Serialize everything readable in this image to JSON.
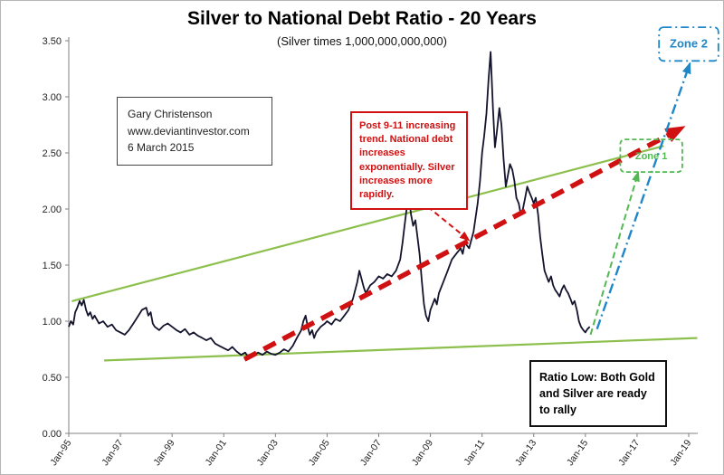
{
  "window": {
    "title": "Silver to National Debt Ratio - 20 Years"
  },
  "chart_data": {
    "type": "line",
    "title": "Silver to National Debt Ratio - 20 Years",
    "subtitle": "(Silver times 1,000,000,000,000)",
    "xlabel": "",
    "ylabel": "",
    "ylim": [
      0,
      3.5
    ],
    "ytick_step": 0.5,
    "x_range": [
      1995,
      2019.35
    ],
    "grid": false,
    "legend": "none",
    "x_ticks": [
      {
        "year": 1995,
        "label": "Jan-95"
      },
      {
        "year": 1997,
        "label": "Jan-97"
      },
      {
        "year": 1999,
        "label": "Jan-99"
      },
      {
        "year": 2001,
        "label": "Jan-01"
      },
      {
        "year": 2003,
        "label": "Jan-03"
      },
      {
        "year": 2005,
        "label": "Jan-05"
      },
      {
        "year": 2007,
        "label": "Jan-07"
      },
      {
        "year": 2009,
        "label": "Jan-09"
      },
      {
        "year": 2011,
        "label": "Jan-11"
      },
      {
        "year": 2013,
        "label": "Jan-13"
      },
      {
        "year": 2015,
        "label": "Jan-15"
      },
      {
        "year": 2017,
        "label": "Jan-17"
      },
      {
        "year": 2019,
        "label": "Jan-19"
      }
    ],
    "colors": {
      "series": "#14142e",
      "trend": "#8cbf4c",
      "red": "#d11111",
      "green_arrow": "#52b852",
      "blue": "#1f86c8",
      "axis": "#808080",
      "text": "#222222"
    },
    "series": {
      "name": "Silver to National Debt Ratio",
      "points": [
        [
          1995.0,
          0.95
        ],
        [
          1995.08,
          1.0
        ],
        [
          1995.17,
          0.97
        ],
        [
          1995.25,
          1.08
        ],
        [
          1995.33,
          1.12
        ],
        [
          1995.42,
          1.18
        ],
        [
          1995.5,
          1.14
        ],
        [
          1995.58,
          1.19
        ],
        [
          1995.67,
          1.1
        ],
        [
          1995.75,
          1.05
        ],
        [
          1995.83,
          1.08
        ],
        [
          1995.92,
          1.02
        ],
        [
          1996.0,
          1.05
        ],
        [
          1996.17,
          0.98
        ],
        [
          1996.33,
          1.0
        ],
        [
          1996.5,
          0.95
        ],
        [
          1996.67,
          0.97
        ],
        [
          1996.83,
          0.92
        ],
        [
          1997.0,
          0.9
        ],
        [
          1997.17,
          0.88
        ],
        [
          1997.33,
          0.92
        ],
        [
          1997.5,
          0.98
        ],
        [
          1997.67,
          1.04
        ],
        [
          1997.83,
          1.1
        ],
        [
          1998.0,
          1.12
        ],
        [
          1998.08,
          1.05
        ],
        [
          1998.17,
          1.08
        ],
        [
          1998.25,
          0.98
        ],
        [
          1998.33,
          0.95
        ],
        [
          1998.5,
          0.92
        ],
        [
          1998.67,
          0.96
        ],
        [
          1998.83,
          0.98
        ],
        [
          1999.0,
          0.95
        ],
        [
          1999.17,
          0.92
        ],
        [
          1999.33,
          0.9
        ],
        [
          1999.5,
          0.93
        ],
        [
          1999.67,
          0.88
        ],
        [
          1999.83,
          0.9
        ],
        [
          2000.0,
          0.87
        ],
        [
          2000.17,
          0.85
        ],
        [
          2000.33,
          0.83
        ],
        [
          2000.5,
          0.85
        ],
        [
          2000.67,
          0.8
        ],
        [
          2000.83,
          0.78
        ],
        [
          2001.0,
          0.76
        ],
        [
          2001.17,
          0.74
        ],
        [
          2001.33,
          0.77
        ],
        [
          2001.5,
          0.73
        ],
        [
          2001.67,
          0.7
        ],
        [
          2001.83,
          0.72
        ],
        [
          2001.92,
          0.69
        ],
        [
          2002.0,
          0.68
        ],
        [
          2002.17,
          0.7
        ],
        [
          2002.33,
          0.72
        ],
        [
          2002.5,
          0.7
        ],
        [
          2002.67,
          0.73
        ],
        [
          2002.83,
          0.71
        ],
        [
          2003.0,
          0.7
        ],
        [
          2003.17,
          0.72
        ],
        [
          2003.33,
          0.75
        ],
        [
          2003.5,
          0.73
        ],
        [
          2003.67,
          0.78
        ],
        [
          2003.83,
          0.85
        ],
        [
          2004.0,
          0.92
        ],
        [
          2004.08,
          1.0
        ],
        [
          2004.17,
          1.05
        ],
        [
          2004.25,
          0.95
        ],
        [
          2004.33,
          0.88
        ],
        [
          2004.42,
          0.92
        ],
        [
          2004.5,
          0.85
        ],
        [
          2004.58,
          0.9
        ],
        [
          2004.75,
          0.95
        ],
        [
          2004.92,
          0.98
        ],
        [
          2005.0,
          1.0
        ],
        [
          2005.17,
          0.97
        ],
        [
          2005.33,
          1.02
        ],
        [
          2005.5,
          1.0
        ],
        [
          2005.67,
          1.05
        ],
        [
          2005.83,
          1.1
        ],
        [
          2006.0,
          1.2
        ],
        [
          2006.17,
          1.35
        ],
        [
          2006.25,
          1.45
        ],
        [
          2006.33,
          1.38
        ],
        [
          2006.42,
          1.3
        ],
        [
          2006.5,
          1.25
        ],
        [
          2006.67,
          1.32
        ],
        [
          2006.83,
          1.35
        ],
        [
          2007.0,
          1.4
        ],
        [
          2007.17,
          1.38
        ],
        [
          2007.33,
          1.42
        ],
        [
          2007.5,
          1.4
        ],
        [
          2007.67,
          1.45
        ],
        [
          2007.83,
          1.55
        ],
        [
          2007.92,
          1.7
        ],
        [
          2008.0,
          1.85
        ],
        [
          2008.08,
          2.0
        ],
        [
          2008.17,
          2.1
        ],
        [
          2008.25,
          1.95
        ],
        [
          2008.33,
          1.85
        ],
        [
          2008.42,
          1.9
        ],
        [
          2008.5,
          1.75
        ],
        [
          2008.58,
          1.6
        ],
        [
          2008.67,
          1.35
        ],
        [
          2008.75,
          1.15
        ],
        [
          2008.83,
          1.05
        ],
        [
          2008.92,
          1.0
        ],
        [
          2009.0,
          1.1
        ],
        [
          2009.17,
          1.2
        ],
        [
          2009.25,
          1.15
        ],
        [
          2009.33,
          1.25
        ],
        [
          2009.5,
          1.35
        ],
        [
          2009.67,
          1.45
        ],
        [
          2009.83,
          1.55
        ],
        [
          2010.0,
          1.6
        ],
        [
          2010.17,
          1.65
        ],
        [
          2010.25,
          1.6
        ],
        [
          2010.33,
          1.7
        ],
        [
          2010.5,
          1.65
        ],
        [
          2010.67,
          1.8
        ],
        [
          2010.83,
          2.05
        ],
        [
          2010.92,
          2.25
        ],
        [
          2011.0,
          2.5
        ],
        [
          2011.08,
          2.65
        ],
        [
          2011.17,
          2.85
        ],
        [
          2011.25,
          3.15
        ],
        [
          2011.33,
          3.4
        ],
        [
          2011.42,
          2.9
        ],
        [
          2011.5,
          2.55
        ],
        [
          2011.58,
          2.7
        ],
        [
          2011.67,
          2.9
        ],
        [
          2011.75,
          2.75
        ],
        [
          2011.83,
          2.45
        ],
        [
          2011.92,
          2.2
        ],
        [
          2012.0,
          2.3
        ],
        [
          2012.08,
          2.4
        ],
        [
          2012.17,
          2.35
        ],
        [
          2012.25,
          2.25
        ],
        [
          2012.33,
          2.1
        ],
        [
          2012.42,
          2.05
        ],
        [
          2012.5,
          1.95
        ],
        [
          2012.58,
          2.0
        ],
        [
          2012.67,
          2.1
        ],
        [
          2012.75,
          2.2
        ],
        [
          2012.83,
          2.15
        ],
        [
          2012.92,
          2.1
        ],
        [
          2013.0,
          2.05
        ],
        [
          2013.08,
          2.1
        ],
        [
          2013.17,
          1.95
        ],
        [
          2013.25,
          1.75
        ],
        [
          2013.33,
          1.6
        ],
        [
          2013.42,
          1.45
        ],
        [
          2013.5,
          1.4
        ],
        [
          2013.58,
          1.35
        ],
        [
          2013.67,
          1.4
        ],
        [
          2013.75,
          1.32
        ],
        [
          2013.83,
          1.28
        ],
        [
          2013.92,
          1.25
        ],
        [
          2014.0,
          1.22
        ],
        [
          2014.08,
          1.28
        ],
        [
          2014.17,
          1.32
        ],
        [
          2014.25,
          1.28
        ],
        [
          2014.33,
          1.25
        ],
        [
          2014.42,
          1.2
        ],
        [
          2014.5,
          1.15
        ],
        [
          2014.58,
          1.18
        ],
        [
          2014.67,
          1.1
        ],
        [
          2014.75,
          1.0
        ],
        [
          2014.83,
          0.95
        ],
        [
          2014.92,
          0.92
        ],
        [
          2015.0,
          0.9
        ],
        [
          2015.08,
          0.93
        ],
        [
          2015.17,
          0.95
        ]
      ]
    },
    "trendlines": [
      {
        "name": "upper-green-trendline",
        "x1": 1995.15,
        "y1": 1.18,
        "x2": 2018.0,
        "y2": 2.56
      },
      {
        "name": "lower-green-trendline",
        "x1": 1996.4,
        "y1": 0.65,
        "x2": 2019.3,
        "y2": 0.85
      }
    ],
    "arrows": [
      {
        "name": "post-911-trend-arrow",
        "type": "red_big",
        "x1": 2001.8,
        "y1": 0.66,
        "x2": 2018.8,
        "y2": 2.73
      },
      {
        "name": "annotation-pointer-arrow",
        "type": "red_thin",
        "x1": 2008.9,
        "y1": 2.02,
        "x2": 2010.5,
        "y2": 1.72
      },
      {
        "name": "zone1-projection-arrow",
        "type": "green_dashed",
        "x1": 2015.2,
        "y1": 0.88,
        "x2": 2017.05,
        "y2": 2.33
      },
      {
        "name": "zone2-projection-arrow",
        "type": "blue_dashdot",
        "x1": 2015.45,
        "y1": 0.93,
        "x2": 2019.05,
        "y2": 3.3
      }
    ],
    "zones": [
      {
        "label": "Zone 1",
        "x1": 2016.35,
        "y1": 2.33,
        "x2": 2018.75,
        "y2": 2.62,
        "color": "green_arrow",
        "font": 11,
        "dash": "5 3"
      },
      {
        "label": "Zone 2",
        "x1": 2017.85,
        "y1": 3.32,
        "x2": 2020.15,
        "y2": 3.62,
        "color": "blue",
        "font": 13,
        "dash": "9 4 2 4"
      }
    ]
  },
  "annotations": {
    "author_box": {
      "line1": "Gary Christenson",
      "line2": "www.deviantinvestor.com",
      "line3": "6 March 2015"
    },
    "trend_note": "Post 9-11 increasing trend.  National debt increases exponentially.  Silver increases more rapidly.",
    "ratio_low_note": "Ratio Low: Both Gold and Silver  are ready to rally"
  }
}
